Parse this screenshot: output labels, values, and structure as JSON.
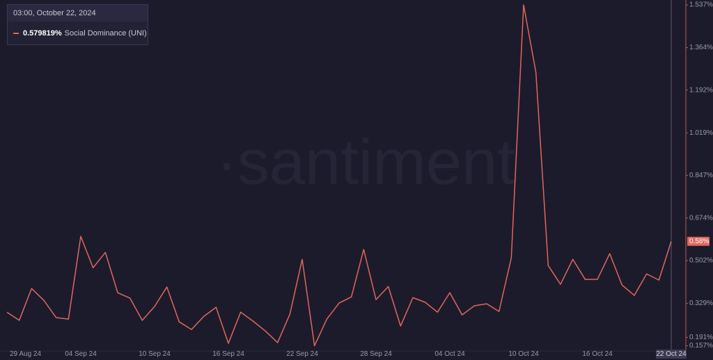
{
  "chart_data": {
    "type": "line",
    "watermark": "·santiment",
    "tooltip": {
      "date": "03:00, October 22, 2024",
      "value_label": "0.579819%"
    },
    "current_label": "0.58%",
    "categories": [
      "29 Aug 24",
      null,
      null,
      null,
      null,
      null,
      "04 Sep 24",
      null,
      null,
      null,
      null,
      null,
      "10 Sep 24",
      null,
      null,
      null,
      null,
      null,
      "16 Sep 24",
      null,
      null,
      null,
      null,
      null,
      "22 Sep 24",
      null,
      null,
      null,
      null,
      null,
      "28 Sep 24",
      null,
      null,
      null,
      null,
      null,
      "04 Oct 24",
      null,
      null,
      null,
      null,
      null,
      "10 Oct 24",
      null,
      null,
      null,
      null,
      null,
      "16 Oct 24",
      null,
      null,
      null,
      null,
      null,
      "22 Oct 24"
    ],
    "series": [
      {
        "name": "Social Dominance (UNI)",
        "color": "#e0675c",
        "values": [
          0.293,
          0.26,
          0.389,
          0.341,
          0.271,
          0.265,
          0.6,
          0.473,
          0.535,
          0.372,
          0.35,
          0.26,
          0.316,
          0.395,
          0.254,
          0.223,
          0.276,
          0.313,
          0.167,
          0.293,
          0.257,
          0.217,
          0.17,
          0.285,
          0.507,
          0.157,
          0.265,
          0.33,
          0.355,
          0.547,
          0.344,
          0.397,
          0.237,
          0.352,
          0.333,
          0.293,
          0.372,
          0.282,
          0.319,
          0.327,
          0.296,
          0.513,
          1.537,
          1.264,
          0.482,
          0.406,
          0.507,
          0.426,
          0.426,
          0.53,
          0.403,
          0.361,
          0.448,
          0.423,
          0.579819
        ]
      }
    ],
    "ylim": [
      0.136,
      1.557
    ],
    "yticks": [
      {
        "value": 1.537,
        "label": "1.537%"
      },
      {
        "value": 1.364,
        "label": "1.364%"
      },
      {
        "value": 1.192,
        "label": "1.192%"
      },
      {
        "value": 1.019,
        "label": "1.019%"
      },
      {
        "value": 0.847,
        "label": "0.847%"
      },
      {
        "value": 0.674,
        "label": "0.674%"
      },
      {
        "value": 0.502,
        "label": "0.502%"
      },
      {
        "value": 0.329,
        "label": "0.329%"
      },
      {
        "value": 0.191,
        "label": "0.191%"
      },
      {
        "value": 0.157,
        "label": "0.157%"
      }
    ],
    "y_axis_side": "right"
  }
}
